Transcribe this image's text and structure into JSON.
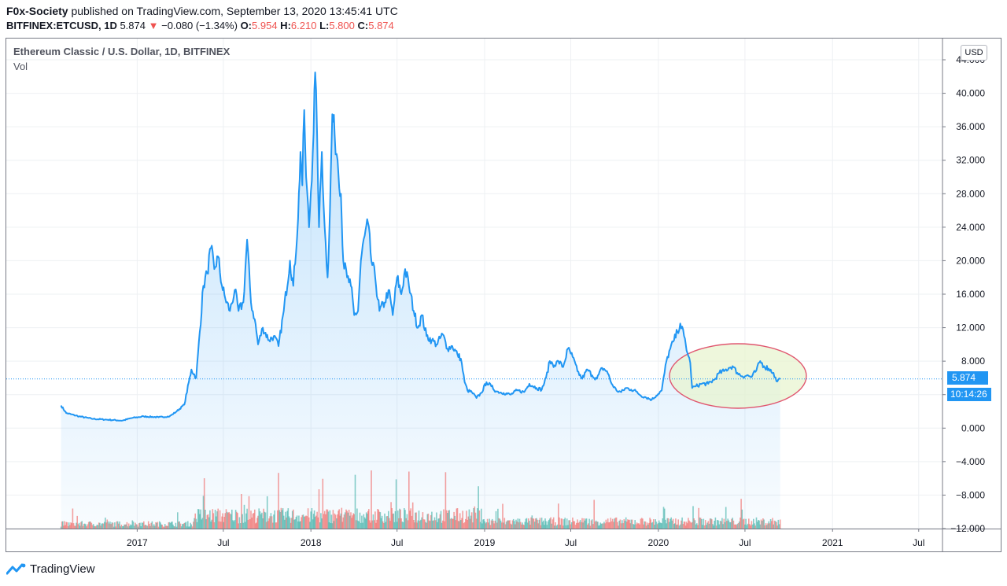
{
  "header": {
    "author": "F0x-Society",
    "published_text": " published on TradingView.com, September 13, 2020 13:45:41 UTC",
    "symbol": "BITFINEX:ETCUSD, 1D",
    "last": " 5.874 ",
    "change_arrow": "▼",
    "change": " −0.080 (−1.34%)",
    "o_label": " O:",
    "o_value": "5.954",
    "h_label": " H:",
    "h_value": "6.210",
    "l_label": " L:",
    "l_value": "5.800",
    "c_label": " C:",
    "c_value": "5.874"
  },
  "legend": {
    "title": "Ethereum Classic / U.S. Dollar, 1D, BITFINEX",
    "vol": "Vol"
  },
  "scale": {
    "currency": "USD",
    "price_tag": "5.874",
    "countdown_tag": "10:14:26"
  },
  "footer": {
    "brand": "TradingView"
  },
  "colors": {
    "line": "#2196f3",
    "area_fill": "#2196f3",
    "vol_up": "#26a69a",
    "vol_down": "#ef5350",
    "annotation_ellipse": "#e0566f",
    "annotation_fill": "#e8f4d0"
  },
  "chart_data": {
    "type": "line",
    "title": "Ethereum Classic / U.S. Dollar, 1D, BITFINEX",
    "ylim": [
      -12,
      44
    ],
    "y_ticks": [
      "44.000",
      "40.000",
      "36.000",
      "32.000",
      "28.000",
      "24.000",
      "20.000",
      "16.000",
      "12.000",
      "8.000",
      "4.000",
      "0.000",
      "−4.000",
      "−8.000",
      "−12.000"
    ],
    "y_tick_values": [
      44,
      40,
      36,
      32,
      28,
      24,
      20,
      16,
      12,
      8,
      4,
      0,
      -4,
      -8,
      -12
    ],
    "x_ticks": [
      "2017",
      "Jul",
      "2018",
      "Jul",
      "2019",
      "Jul",
      "2020",
      "Jul",
      "2021",
      "Jul"
    ],
    "x_tick_dates": [
      "2017-01-01",
      "2017-07-01",
      "2018-01-01",
      "2018-07-01",
      "2019-01-01",
      "2019-07-01",
      "2020-01-01",
      "2020-07-01",
      "2021-01-01",
      "2021-07-01"
    ],
    "xlim": [
      "2016-04-01",
      "2021-08-20"
    ],
    "last_price": 5.874,
    "grid": true,
    "series": [
      {
        "points": [
          [
            "2016-07-25",
            2.7
          ],
          [
            "2016-08-05",
            1.8
          ],
          [
            "2016-09-01",
            1.4
          ],
          [
            "2016-10-01",
            1.1
          ],
          [
            "2016-11-01",
            1.0
          ],
          [
            "2016-12-01",
            0.9
          ],
          [
            "2016-12-20",
            1.2
          ],
          [
            "2017-01-15",
            1.4
          ],
          [
            "2017-02-15",
            1.3
          ],
          [
            "2017-03-10",
            1.4
          ],
          [
            "2017-03-25",
            2.0
          ],
          [
            "2017-04-10",
            2.8
          ],
          [
            "2017-04-25",
            7.0
          ],
          [
            "2017-05-05",
            6.0
          ],
          [
            "2017-05-20",
            17.0
          ],
          [
            "2017-05-28",
            18.5
          ],
          [
            "2017-06-05",
            21.5
          ],
          [
            "2017-06-12",
            19.0
          ],
          [
            "2017-06-20",
            20.5
          ],
          [
            "2017-06-28",
            17.0
          ],
          [
            "2017-07-05",
            15.5
          ],
          [
            "2017-07-15",
            14.0
          ],
          [
            "2017-07-25",
            16.5
          ],
          [
            "2017-08-02",
            14.0
          ],
          [
            "2017-08-12",
            15.0
          ],
          [
            "2017-08-20",
            22.5
          ],
          [
            "2017-08-28",
            15.0
          ],
          [
            "2017-09-05",
            13.0
          ],
          [
            "2017-09-12",
            10.0
          ],
          [
            "2017-09-22",
            12.0
          ],
          [
            "2017-10-05",
            10.5
          ],
          [
            "2017-10-15",
            11.0
          ],
          [
            "2017-10-25",
            9.8
          ],
          [
            "2017-11-05",
            14.0
          ],
          [
            "2017-11-18",
            20.0
          ],
          [
            "2017-11-25",
            17.0
          ],
          [
            "2017-12-05",
            25.0
          ],
          [
            "2017-12-10",
            33.0
          ],
          [
            "2017-12-14",
            29.0
          ],
          [
            "2017-12-18",
            38.0
          ],
          [
            "2017-12-22",
            30.0
          ],
          [
            "2017-12-28",
            24.0
          ],
          [
            "2018-01-05",
            33.0
          ],
          [
            "2018-01-10",
            42.5
          ],
          [
            "2018-01-14",
            35.0
          ],
          [
            "2018-01-18",
            24.0
          ],
          [
            "2018-01-24",
            33.0
          ],
          [
            "2018-01-30",
            24.0
          ],
          [
            "2018-02-05",
            18.0
          ],
          [
            "2018-02-10",
            26.0
          ],
          [
            "2018-02-15",
            37.5
          ],
          [
            "2018-02-20",
            35.0
          ],
          [
            "2018-02-26",
            32.0
          ],
          [
            "2018-03-05",
            28.0
          ],
          [
            "2018-03-10",
            20.0
          ],
          [
            "2018-03-18",
            18.0
          ],
          [
            "2018-03-26",
            17.0
          ],
          [
            "2018-04-02",
            13.5
          ],
          [
            "2018-04-10",
            14.0
          ],
          [
            "2018-04-16",
            20.0
          ],
          [
            "2018-04-24",
            23.0
          ],
          [
            "2018-05-01",
            24.5
          ],
          [
            "2018-05-08",
            20.0
          ],
          [
            "2018-05-16",
            18.0
          ],
          [
            "2018-05-25",
            14.0
          ],
          [
            "2018-06-05",
            15.0
          ],
          [
            "2018-06-13",
            16.5
          ],
          [
            "2018-06-22",
            13.5
          ],
          [
            "2018-07-01",
            18.0
          ],
          [
            "2018-07-10",
            16.0
          ],
          [
            "2018-07-18",
            19.0
          ],
          [
            "2018-07-26",
            17.0
          ],
          [
            "2018-08-05",
            14.0
          ],
          [
            "2018-08-14",
            12.0
          ],
          [
            "2018-08-22",
            13.5
          ],
          [
            "2018-09-01",
            11.0
          ],
          [
            "2018-09-12",
            10.5
          ],
          [
            "2018-09-22",
            10.0
          ],
          [
            "2018-10-05",
            11.2
          ],
          [
            "2018-10-15",
            9.5
          ],
          [
            "2018-10-25",
            9.8
          ],
          [
            "2018-11-05",
            8.8
          ],
          [
            "2018-11-12",
            8.3
          ],
          [
            "2018-11-20",
            5.5
          ],
          [
            "2018-11-26",
            4.5
          ],
          [
            "2018-12-05",
            4.3
          ],
          [
            "2018-12-15",
            3.6
          ],
          [
            "2018-12-25",
            4.2
          ],
          [
            "2019-01-05",
            5.5
          ],
          [
            "2019-01-15",
            5.0
          ],
          [
            "2019-01-25",
            4.4
          ],
          [
            "2019-02-10",
            4.2
          ],
          [
            "2019-02-25",
            4.0
          ],
          [
            "2019-03-10",
            4.5
          ],
          [
            "2019-03-25",
            4.3
          ],
          [
            "2019-04-05",
            5.3
          ],
          [
            "2019-04-20",
            4.8
          ],
          [
            "2019-05-01",
            4.6
          ],
          [
            "2019-05-10",
            6.0
          ],
          [
            "2019-05-18",
            8.0
          ],
          [
            "2019-05-28",
            7.5
          ],
          [
            "2019-06-05",
            8.0
          ],
          [
            "2019-06-15",
            7.3
          ],
          [
            "2019-06-25",
            9.5
          ],
          [
            "2019-07-05",
            8.5
          ],
          [
            "2019-07-15",
            6.8
          ],
          [
            "2019-07-25",
            5.9
          ],
          [
            "2019-08-05",
            7.0
          ],
          [
            "2019-08-15",
            6.3
          ],
          [
            "2019-08-25",
            5.9
          ],
          [
            "2019-09-05",
            7.2
          ],
          [
            "2019-09-15",
            6.8
          ],
          [
            "2019-09-25",
            5.3
          ],
          [
            "2019-10-05",
            4.5
          ],
          [
            "2019-10-15",
            4.3
          ],
          [
            "2019-10-25",
            4.8
          ],
          [
            "2019-11-05",
            4.6
          ],
          [
            "2019-11-15",
            4.4
          ],
          [
            "2019-11-25",
            3.9
          ],
          [
            "2019-12-05",
            3.7
          ],
          [
            "2019-12-18",
            3.4
          ],
          [
            "2019-12-28",
            3.9
          ],
          [
            "2020-01-08",
            4.5
          ],
          [
            "2020-01-18",
            8.0
          ],
          [
            "2020-01-26",
            9.5
          ],
          [
            "2020-02-03",
            10.5
          ],
          [
            "2020-02-10",
            11.5
          ],
          [
            "2020-02-16",
            12.5
          ],
          [
            "2020-02-24",
            11.0
          ],
          [
            "2020-03-02",
            9.0
          ],
          [
            "2020-03-08",
            7.8
          ],
          [
            "2020-03-12",
            4.8
          ],
          [
            "2020-03-20",
            5.0
          ],
          [
            "2020-04-01",
            5.3
          ],
          [
            "2020-04-15",
            5.3
          ],
          [
            "2020-04-28",
            5.8
          ],
          [
            "2020-05-08",
            6.6
          ],
          [
            "2020-05-18",
            6.8
          ],
          [
            "2020-05-28",
            7.2
          ],
          [
            "2020-06-05",
            7.4
          ],
          [
            "2020-06-15",
            6.6
          ],
          [
            "2020-06-25",
            6.2
          ],
          [
            "2020-07-05",
            6.3
          ],
          [
            "2020-07-15",
            6.1
          ],
          [
            "2020-07-25",
            6.9
          ],
          [
            "2020-08-02",
            8.0
          ],
          [
            "2020-08-10",
            7.4
          ],
          [
            "2020-08-20",
            7.1
          ],
          [
            "2020-08-30",
            6.6
          ],
          [
            "2020-09-05",
            5.6
          ],
          [
            "2020-09-13",
            5.874
          ]
        ]
      }
    ]
  }
}
